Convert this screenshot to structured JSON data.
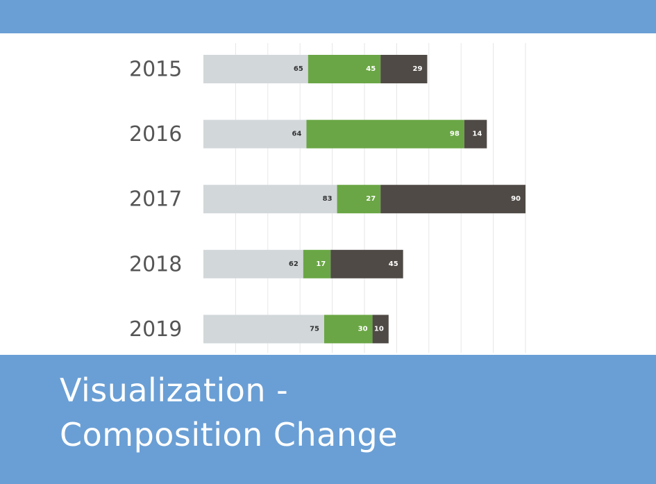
{
  "theme": {
    "band_color": "#6a9fd5",
    "title_color": "#ffffff",
    "label_color": "#555555",
    "grid_color": "#e6e6e6"
  },
  "title": "Visualization  -\nComposition Change",
  "chart_data": {
    "type": "bar",
    "orientation": "horizontal",
    "stacked": true,
    "categories": [
      "2015",
      "2016",
      "2017",
      "2018",
      "2019"
    ],
    "series": [
      {
        "color": "#d2d7da",
        "label_color": "#333333",
        "values": [
          65,
          64,
          83,
          62,
          75
        ]
      },
      {
        "color": "#6aa645",
        "label_color": "#ffffff",
        "values": [
          45,
          98,
          27,
          17,
          30
        ]
      },
      {
        "color": "#4f4a45",
        "label_color": "#ffffff",
        "values": [
          29,
          14,
          90,
          45,
          10
        ]
      }
    ],
    "xlim": [
      0,
      200
    ],
    "grid": true,
    "x_tick_labels_shown": false,
    "legend": "none"
  }
}
